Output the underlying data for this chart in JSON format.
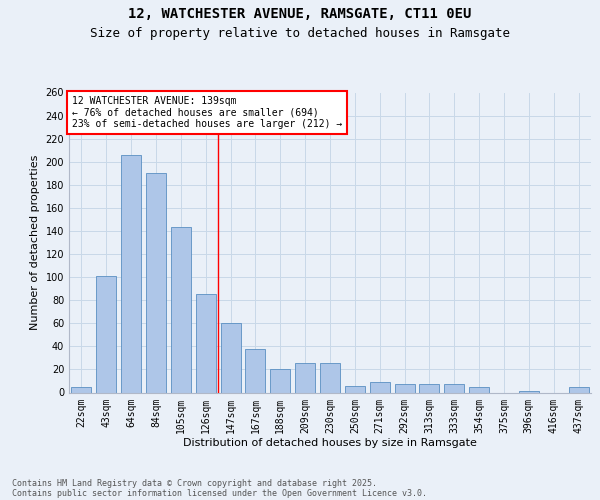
{
  "title_line1": "12, WATCHESTER AVENUE, RAMSGATE, CT11 0EU",
  "title_line2": "Size of property relative to detached houses in Ramsgate",
  "xlabel": "Distribution of detached houses by size in Ramsgate",
  "ylabel": "Number of detached properties",
  "categories": [
    "22sqm",
    "43sqm",
    "64sqm",
    "84sqm",
    "105sqm",
    "126sqm",
    "147sqm",
    "167sqm",
    "188sqm",
    "209sqm",
    "230sqm",
    "250sqm",
    "271sqm",
    "292sqm",
    "313sqm",
    "333sqm",
    "354sqm",
    "375sqm",
    "396sqm",
    "416sqm",
    "437sqm"
  ],
  "values": [
    5,
    101,
    206,
    190,
    143,
    85,
    60,
    38,
    20,
    26,
    26,
    6,
    9,
    7,
    7,
    7,
    5,
    0,
    1,
    0,
    5
  ],
  "bar_color": "#aec6e8",
  "bar_edge_color": "#5a8fc2",
  "grid_color": "#c8d8e8",
  "background_color": "#eaf0f8",
  "vline_color": "red",
  "annotation_text": "12 WATCHESTER AVENUE: 139sqm\n← 76% of detached houses are smaller (694)\n23% of semi-detached houses are larger (212) →",
  "annotation_box_color": "red",
  "ylim": [
    0,
    260
  ],
  "yticks": [
    0,
    20,
    40,
    60,
    80,
    100,
    120,
    140,
    160,
    180,
    200,
    220,
    240,
    260
  ],
  "footer_line1": "Contains HM Land Registry data © Crown copyright and database right 2025.",
  "footer_line2": "Contains public sector information licensed under the Open Government Licence v3.0.",
  "title_fontsize": 10,
  "subtitle_fontsize": 9,
  "axis_label_fontsize": 8,
  "tick_fontsize": 7,
  "annotation_fontsize": 7,
  "footer_fontsize": 6
}
